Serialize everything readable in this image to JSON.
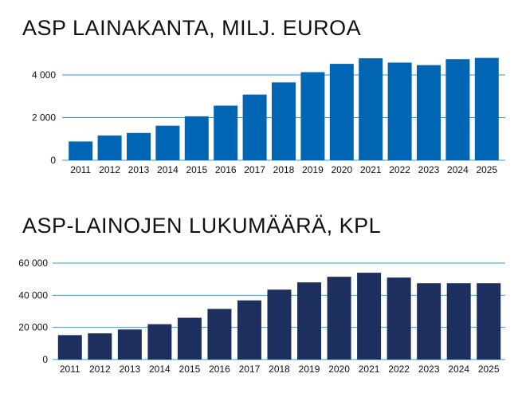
{
  "colors": {
    "loan_bar": "#0066b3",
    "count_bar": "#1d2f5e",
    "gridline": "#2b9bd6",
    "text": "#111111"
  },
  "chart_data": [
    {
      "type": "bar",
      "title": "ASP LAINAKANTA, MILJ. EUROA",
      "categories": [
        "2011",
        "2012",
        "2013",
        "2014",
        "2015",
        "2016",
        "2017",
        "2018",
        "2019",
        "2020",
        "2021",
        "2022",
        "2023",
        "2024",
        "2025"
      ],
      "values": [
        880,
        1160,
        1280,
        1620,
        2060,
        2560,
        3080,
        3650,
        4130,
        4520,
        4780,
        4580,
        4460,
        4740,
        4800
      ],
      "ylim": [
        0,
        4000
      ],
      "yticks": [
        0,
        2000,
        4000
      ],
      "ytick_labels": [
        "0",
        "2 000",
        "4 000"
      ],
      "grid": true
    },
    {
      "type": "bar",
      "title": "ASP-LAINOJEN LUKUMÄÄRÄ, KPL",
      "categories": [
        "2011",
        "2012",
        "2013",
        "2014",
        "2015",
        "2016",
        "2017",
        "2018",
        "2019",
        "2020",
        "2021",
        "2022",
        "2023",
        "2024",
        "2025"
      ],
      "values": [
        15200,
        16300,
        18700,
        22000,
        26000,
        31500,
        36800,
        43500,
        48000,
        51500,
        54000,
        51000,
        47500,
        47500,
        47500
      ],
      "ylim": [
        0,
        60000
      ],
      "yticks": [
        0,
        20000,
        40000,
        60000
      ],
      "ytick_labels": [
        "0",
        "20 000",
        "40 000",
        "60 000"
      ],
      "grid": true
    }
  ]
}
